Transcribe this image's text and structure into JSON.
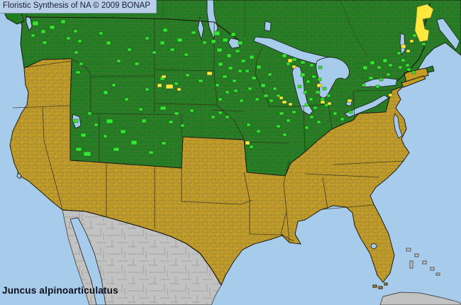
{
  "header": {
    "title": "Floristic Synthesis of NA © 2009 BONAP"
  },
  "footer": {
    "species": "Juncus alpinoarticulatus"
  },
  "map": {
    "colors": {
      "ocean": "#a7cbeb",
      "state_level_presence_green": "#1f7c1f",
      "county_present_bright_green": "#32e632",
      "county_rare_yellow": "#ffe83e",
      "state_absent_gold": "#c49d26",
      "outside_region_gray": "#c2c2c2",
      "county_outline": "#6f6d55",
      "border_dark": "#17170f"
    },
    "markers": {
      "county_present": [
        [
          46,
          30,
          8,
          6
        ],
        [
          58,
          42,
          6,
          5
        ],
        [
          70,
          36,
          7,
          5
        ],
        [
          86,
          28,
          6,
          5
        ],
        [
          60,
          58,
          6,
          4
        ],
        [
          44,
          48,
          5,
          4
        ],
        [
          94,
          52,
          5,
          4
        ],
        [
          104,
          42,
          5,
          4
        ],
        [
          110,
          56,
          5,
          4
        ],
        [
          105,
          72,
          5,
          4
        ],
        [
          112,
          88,
          5,
          4
        ],
        [
          107,
          100,
          6,
          4
        ],
        [
          150,
          58,
          6,
          5
        ],
        [
          180,
          68,
          5,
          4
        ],
        [
          205,
          52,
          5,
          4
        ],
        [
          165,
          84,
          5,
          4
        ],
        [
          190,
          88,
          6,
          4
        ],
        [
          215,
          72,
          5,
          4
        ],
        [
          226,
          58,
          6,
          5
        ],
        [
          140,
          45,
          5,
          4
        ],
        [
          230,
          40,
          6,
          5
        ],
        [
          250,
          54,
          7,
          5
        ],
        [
          270,
          44,
          6,
          4
        ],
        [
          286,
          58,
          5,
          4
        ],
        [
          240,
          68,
          6,
          4
        ],
        [
          260,
          75,
          5,
          4
        ],
        [
          226,
          108,
          6,
          5
        ],
        [
          246,
          116,
          5,
          4
        ],
        [
          262,
          104,
          5,
          4
        ],
        [
          280,
          112,
          6,
          4
        ],
        [
          226,
          150,
          8,
          5
        ],
        [
          246,
          158,
          6,
          4
        ],
        [
          268,
          154,
          5,
          4
        ],
        [
          238,
          170,
          6,
          4
        ],
        [
          298,
          163,
          5,
          4
        ],
        [
          255,
          175,
          5,
          4
        ],
        [
          146,
          128,
          6,
          5
        ],
        [
          176,
          138,
          5,
          4
        ],
        [
          205,
          124,
          5,
          4
        ],
        [
          158,
          118,
          5,
          4
        ],
        [
          104,
          168,
          6,
          5
        ],
        [
          114,
          188,
          7,
          5
        ],
        [
          107,
          208,
          8,
          5
        ],
        [
          124,
          158,
          5,
          4
        ],
        [
          118,
          214,
          10,
          6
        ],
        [
          133,
          174,
          5,
          4
        ],
        [
          150,
          168,
          9,
          6
        ],
        [
          170,
          183,
          7,
          5
        ],
        [
          185,
          198,
          8,
          6
        ],
        [
          200,
          168,
          6,
          5
        ],
        [
          160,
          208,
          8,
          5
        ],
        [
          146,
          190,
          5,
          4
        ],
        [
          210,
          213,
          6,
          4
        ],
        [
          196,
          152,
          5,
          4
        ],
        [
          228,
          200,
          6,
          4
        ],
        [
          302,
          44,
          8,
          6
        ],
        [
          314,
          54,
          7,
          5
        ],
        [
          326,
          46,
          6,
          5
        ],
        [
          336,
          58,
          6,
          5
        ],
        [
          306,
          68,
          7,
          5
        ],
        [
          320,
          76,
          6,
          5
        ],
        [
          332,
          70,
          6,
          4
        ],
        [
          340,
          84,
          6,
          4
        ],
        [
          308,
          88,
          6,
          5
        ],
        [
          322,
          94,
          6,
          4
        ],
        [
          298,
          56,
          6,
          5
        ],
        [
          336,
          98,
          5,
          4
        ],
        [
          314,
          106,
          6,
          4
        ],
        [
          304,
          118,
          5,
          4
        ],
        [
          328,
          112,
          5,
          4
        ],
        [
          318,
          128,
          5,
          4
        ],
        [
          308,
          138,
          5,
          4
        ],
        [
          330,
          126,
          5,
          4
        ],
        [
          338,
          140,
          5,
          4
        ],
        [
          318,
          163,
          5,
          4
        ],
        [
          348,
          174,
          5,
          4
        ],
        [
          362,
          183,
          5,
          4
        ],
        [
          308,
          157,
          5,
          4
        ],
        [
          352,
          205,
          5,
          4
        ],
        [
          352,
          78,
          6,
          5
        ],
        [
          362,
          92,
          6,
          5
        ],
        [
          355,
          108,
          6,
          4
        ],
        [
          368,
          118,
          6,
          5
        ],
        [
          378,
          103,
          5,
          4
        ],
        [
          372,
          133,
          6,
          4
        ],
        [
          385,
          123,
          5,
          4
        ],
        [
          380,
          140,
          5,
          4
        ],
        [
          390,
          133,
          5,
          4
        ],
        [
          360,
          138,
          5,
          4
        ],
        [
          350,
          123,
          5,
          4
        ],
        [
          346,
          98,
          5,
          4
        ],
        [
          398,
          76,
          6,
          5
        ],
        [
          412,
          82,
          6,
          4
        ],
        [
          424,
          86,
          6,
          4
        ],
        [
          437,
          90,
          5,
          4
        ],
        [
          449,
          93,
          5,
          4
        ],
        [
          404,
          88,
          5,
          4
        ],
        [
          424,
          103,
          6,
          5
        ],
        [
          432,
          113,
          5,
          4
        ],
        [
          440,
          106,
          5,
          4
        ],
        [
          428,
          128,
          5,
          4
        ],
        [
          436,
          138,
          5,
          4
        ],
        [
          445,
          128,
          6,
          4
        ],
        [
          452,
          138,
          5,
          4
        ],
        [
          448,
          110,
          5,
          4
        ],
        [
          455,
          123,
          5,
          4
        ],
        [
          430,
          146,
          5,
          4
        ],
        [
          442,
          150,
          5,
          4
        ],
        [
          458,
          146,
          5,
          4
        ],
        [
          461,
          133,
          5,
          4
        ],
        [
          420,
          120,
          5,
          4
        ],
        [
          394,
          158,
          6,
          4
        ],
        [
          404,
          168,
          5,
          4
        ],
        [
          390,
          176,
          5,
          4
        ],
        [
          412,
          156,
          5,
          4
        ],
        [
          399,
          188,
          5,
          4
        ],
        [
          437,
          163,
          5,
          4
        ],
        [
          447,
          170,
          5,
          4
        ],
        [
          430,
          178,
          5,
          4
        ],
        [
          470,
          158,
          5,
          4
        ],
        [
          480,
          166,
          5,
          4
        ],
        [
          492,
          156,
          5,
          4
        ],
        [
          512,
          93,
          6,
          5
        ],
        [
          522,
          86,
          6,
          5
        ],
        [
          532,
          93,
          5,
          4
        ],
        [
          540,
          83,
          6,
          5
        ],
        [
          548,
          90,
          5,
          4
        ],
        [
          520,
          108,
          6,
          4
        ],
        [
          535,
          110,
          5,
          4
        ],
        [
          545,
          103,
          5,
          4
        ],
        [
          510,
          118,
          5,
          4
        ],
        [
          530,
          120,
          5,
          4
        ],
        [
          560,
          73,
          5,
          4
        ],
        [
          566,
          83,
          5,
          4
        ],
        [
          572,
          90,
          5,
          4
        ],
        [
          562,
          93,
          5,
          4
        ],
        [
          574,
          96,
          5,
          4
        ],
        [
          581,
          100,
          5,
          4
        ],
        [
          582,
          48,
          5,
          4
        ],
        [
          595,
          60,
          5,
          4
        ]
      ],
      "county_rare": [
        [
          566,
          63,
          6,
          5
        ],
        [
          573,
          70,
          5,
          4
        ],
        [
          578,
          56,
          5,
          4
        ],
        [
          222,
          118,
          6,
          5
        ],
        [
          234,
          119,
          10,
          6
        ],
        [
          228,
          106,
          6,
          4
        ],
        [
          250,
          124,
          5,
          4
        ],
        [
          292,
          101,
          7,
          5
        ],
        [
          346,
          199,
          6,
          5
        ],
        [
          398,
          142,
          6,
          4
        ],
        [
          407,
          145,
          5,
          4
        ],
        [
          394,
          136,
          5,
          4
        ],
        [
          452,
          142,
          6,
          4
        ],
        [
          462,
          144,
          5,
          4
        ],
        [
          490,
          140,
          6,
          4
        ],
        [
          406,
          83,
          6,
          5
        ],
        [
          412,
          92,
          5,
          4
        ],
        [
          447,
          118,
          6,
          5
        ],
        [
          548,
          132,
          5,
          4
        ]
      ],
      "county_rare_paths": [
        "M588,10 L602,6 L611,13 L607,25 L596,27 L599,41 L605,43 L603,57 L592,59 L585,43 L587,25 Z"
      ]
    }
  }
}
